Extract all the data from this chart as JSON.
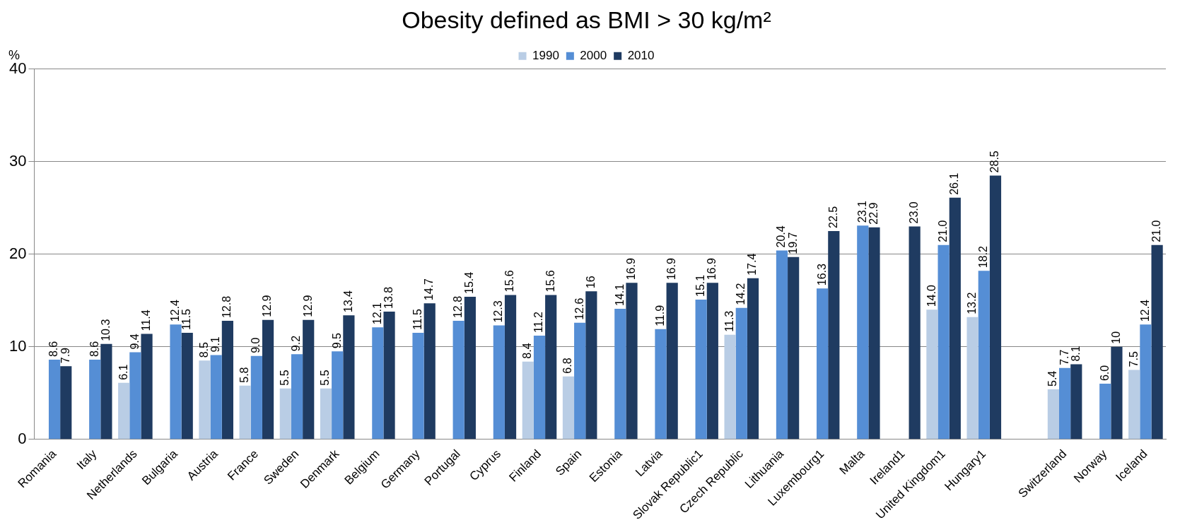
{
  "chart_data": {
    "type": "bar",
    "title": "Obesity defined as BMI > 30 kg/m²",
    "ylabel": "%",
    "categories": [
      "Romania",
      "Italy",
      "Netherlands",
      "Bulgaria",
      "Austria",
      "France",
      "Sweden",
      "Denmark",
      "Belgium",
      "Germany",
      "Portugal",
      "Cyprus",
      "Finland",
      "Spain",
      "Estonia",
      "Latvia",
      "Slovak Republic1",
      "Czech Republic",
      "Lithuania",
      "Luxembourg1",
      "Malta",
      "Ireland1",
      "United Kingdom1",
      "Hungary1",
      null,
      "Switzerland",
      "Norway",
      "Iceland"
    ],
    "series": [
      {
        "name": "1990",
        "color": "#b9cde5",
        "values": [
          null,
          null,
          6.1,
          null,
          8.5,
          5.8,
          5.5,
          5.5,
          null,
          null,
          null,
          null,
          8.4,
          6.8,
          null,
          null,
          null,
          11.3,
          null,
          null,
          null,
          null,
          14.0,
          13.2,
          null,
          5.4,
          null,
          7.5
        ],
        "value_labels": [
          null,
          null,
          "6.1",
          null,
          "8.5",
          "5.8",
          "5.5",
          "5.5",
          null,
          null,
          null,
          null,
          "8.4",
          "6.8",
          null,
          null,
          null,
          "11.3",
          null,
          null,
          null,
          null,
          "14.0",
          "13.2",
          null,
          "5.4",
          null,
          "7.5"
        ]
      },
      {
        "name": "2000",
        "color": "#558ed5",
        "values": [
          8.6,
          8.6,
          9.4,
          12.4,
          9.1,
          9.0,
          9.2,
          9.5,
          12.1,
          11.5,
          12.8,
          12.3,
          11.2,
          12.6,
          14.1,
          11.9,
          15.1,
          14.2,
          20.4,
          16.3,
          23.1,
          null,
          21.0,
          18.2,
          null,
          7.7,
          6.0,
          12.4
        ],
        "value_labels": [
          "8.6",
          "8.6",
          "9.4",
          "12.4",
          "9.1",
          "9.0",
          "9.2",
          "9.5",
          "12.1",
          "11.5",
          "12.8",
          "12.3",
          "11.2",
          "12.6",
          "14.1",
          "11.9",
          "15.1",
          "14.2",
          "20.4",
          "16.3",
          "23.1",
          null,
          "21.0",
          "18.2",
          null,
          "7.7",
          "6.0",
          "12.4"
        ]
      },
      {
        "name": "2010",
        "color": "#1f3b61",
        "values": [
          7.9,
          10.3,
          11.4,
          11.5,
          12.8,
          12.9,
          12.9,
          13.4,
          13.8,
          14.7,
          15.4,
          15.6,
          15.6,
          16,
          16.9,
          16.9,
          16.9,
          17.4,
          19.7,
          22.5,
          22.9,
          23.0,
          26.1,
          28.5,
          null,
          8.1,
          10,
          21.0
        ],
        "value_labels": [
          "7.9",
          "10.3",
          "11.4",
          "11.5",
          "12.8",
          "12.9",
          "12.9",
          "13.4",
          "13.8",
          "14.7",
          "15.4",
          "15.6",
          "15.6",
          "16",
          "16.9",
          "16.9",
          "16.9",
          "17.4",
          "19.7",
          "22.5",
          "22.9",
          "23.0",
          "26.1",
          "28.5",
          null,
          "8.1",
          "10",
          "21.0"
        ]
      }
    ],
    "ylim": [
      0,
      40
    ],
    "yticks": [
      0,
      10,
      20,
      30,
      40
    ],
    "grid": "y",
    "legend": "top"
  }
}
